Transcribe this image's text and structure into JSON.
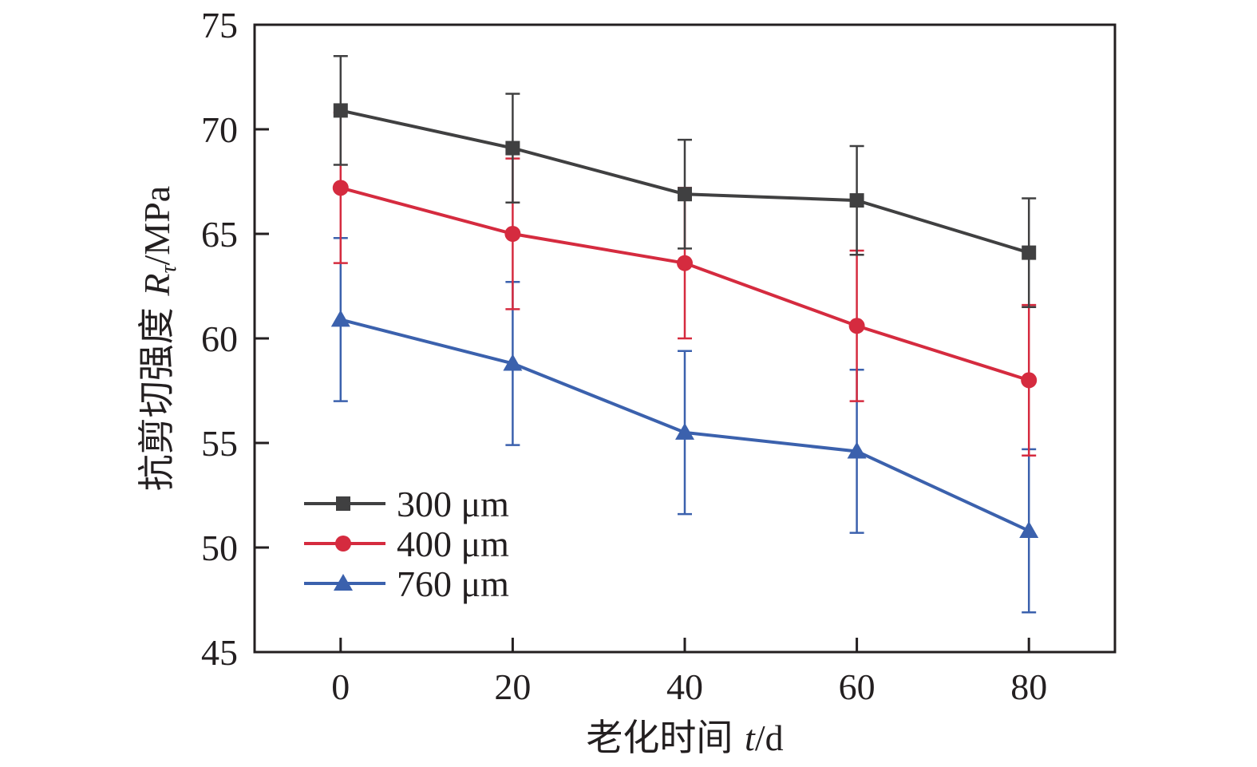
{
  "chart_data": {
    "type": "line",
    "title": "",
    "xlabel": "老化时间 t/d",
    "xlabel_parts": {
      "cn": "老化时间 ",
      "var": "t",
      "unit": "/d"
    },
    "ylabel": "抗剪切强度 Rτ/MPa",
    "ylabel_parts": {
      "cn": "抗剪切强度 ",
      "var": "R",
      "sub": "τ",
      "unit": "/MPa"
    },
    "xlim": [
      -10,
      90
    ],
    "ylim": [
      45,
      75
    ],
    "xticks": [
      0,
      20,
      40,
      60,
      80
    ],
    "xtick_labels": [
      "0",
      "20",
      "40",
      "60",
      "80"
    ],
    "yticks": [
      45,
      50,
      55,
      60,
      65,
      70,
      75
    ],
    "ytick_labels": [
      "45",
      "50",
      "55",
      "60",
      "65",
      "70",
      "75"
    ],
    "grid": false,
    "legend_position": "bottom-left",
    "x": [
      0,
      20,
      40,
      60,
      80
    ],
    "series": [
      {
        "name": "300 μm",
        "marker": "square",
        "color": "#404041",
        "values": [
          70.9,
          69.1,
          66.9,
          66.6,
          64.1
        ],
        "errors": [
          2.6,
          2.6,
          2.6,
          2.6,
          2.6
        ]
      },
      {
        "name": "400 μm",
        "marker": "circle",
        "color": "#d52b3f",
        "values": [
          67.2,
          65.0,
          63.6,
          60.6,
          58.0
        ],
        "errors": [
          3.6,
          3.6,
          3.6,
          3.6,
          3.6
        ]
      },
      {
        "name": "760 μm",
        "marker": "triangle",
        "color": "#3b61ad",
        "values": [
          60.9,
          58.8,
          55.5,
          54.6,
          50.8
        ],
        "errors": [
          3.9,
          3.9,
          3.9,
          3.9,
          3.9
        ]
      }
    ]
  }
}
